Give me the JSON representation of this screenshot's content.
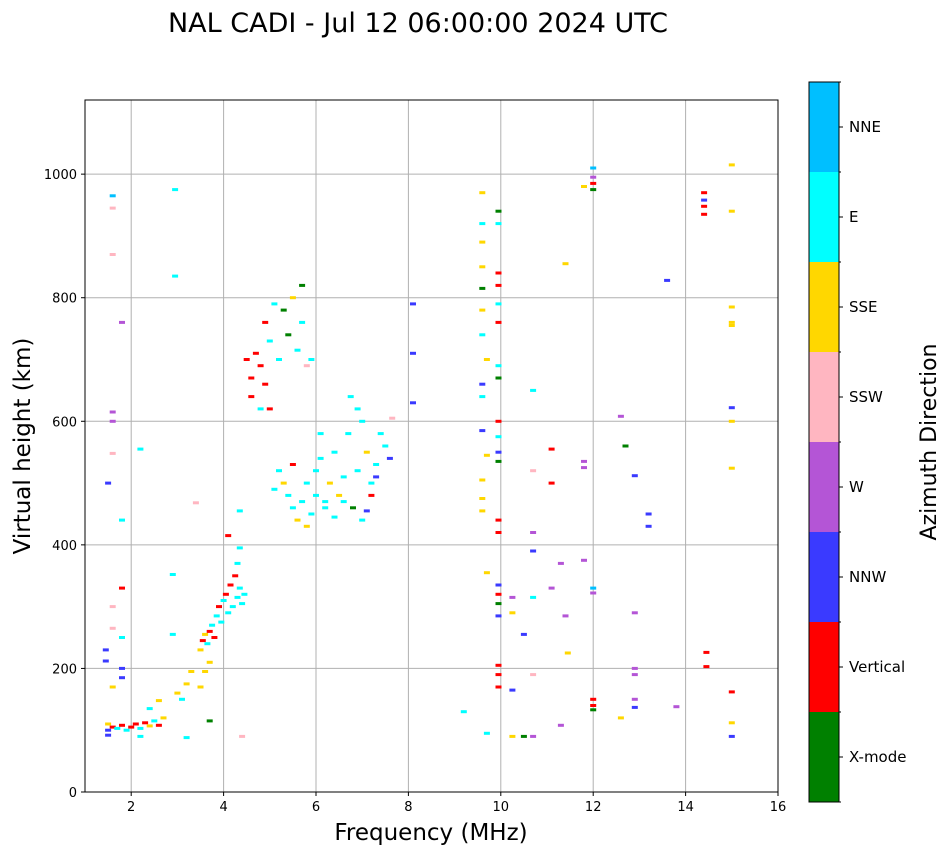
{
  "chart_data": {
    "type": "scatter",
    "title": "NAL CADI - Jul 12 06:00:00 2024 UTC",
    "xlabel": "Frequency (MHz)",
    "ylabel": "Virtual height (km)",
    "xlim": [
      1,
      16
    ],
    "ylim": [
      0,
      1120
    ],
    "xticks": [
      2,
      4,
      6,
      8,
      10,
      12,
      14,
      16
    ],
    "yticks": [
      0,
      200,
      400,
      600,
      800,
      1000
    ],
    "grid": true,
    "colorbar": {
      "label": "Azimuth Direction",
      "categories": [
        {
          "name": "X-mode",
          "color": "#008000"
        },
        {
          "name": "Vertical",
          "color": "#ff0000"
        },
        {
          "name": "NNW",
          "color": "#3a3aff"
        },
        {
          "name": "W",
          "color": "#b455d6"
        },
        {
          "name": "SSW",
          "color": "#ffb6c1"
        },
        {
          "name": "SSE",
          "color": "#ffd700"
        },
        {
          "name": "E",
          "color": "#00ffff"
        },
        {
          "name": "NNE",
          "color": "#00bfff"
        }
      ]
    },
    "points": [
      [
        1.45,
        230,
        "NNW"
      ],
      [
        1.45,
        212,
        "NNW"
      ],
      [
        1.5,
        500,
        "NNW"
      ],
      [
        1.6,
        965,
        "NNE"
      ],
      [
        1.6,
        945,
        "SSW"
      ],
      [
        1.6,
        870,
        "SSW"
      ],
      [
        1.6,
        615,
        "W"
      ],
      [
        1.6,
        600,
        "W"
      ],
      [
        1.6,
        548,
        "SSW"
      ],
      [
        1.6,
        300,
        "SSW"
      ],
      [
        1.6,
        265,
        "SSW"
      ],
      [
        1.6,
        170,
        "SSE"
      ],
      [
        1.8,
        760,
        "W"
      ],
      [
        1.8,
        440,
        "E"
      ],
      [
        1.8,
        330,
        "Vertical"
      ],
      [
        1.8,
        250,
        "E"
      ],
      [
        1.8,
        200,
        "NNW"
      ],
      [
        1.8,
        185,
        "NNW"
      ],
      [
        2.2,
        555,
        "E"
      ],
      [
        2.95,
        975,
        "E"
      ],
      [
        2.95,
        835,
        "E"
      ],
      [
        2.9,
        352,
        "E"
      ],
      [
        2.9,
        255,
        "E"
      ],
      [
        3.4,
        468,
        "SSW"
      ],
      [
        1.5,
        110,
        "SSE"
      ],
      [
        1.5,
        100,
        "NNW"
      ],
      [
        1.5,
        92,
        "NNW"
      ],
      [
        1.6,
        105,
        "Vertical"
      ],
      [
        1.7,
        103,
        "E"
      ],
      [
        1.8,
        108,
        "Vertical"
      ],
      [
        1.9,
        100,
        "E"
      ],
      [
        2.0,
        105,
        "Vertical"
      ],
      [
        2.1,
        110,
        "Vertical"
      ],
      [
        2.2,
        103,
        "E"
      ],
      [
        2.3,
        112,
        "Vertical"
      ],
      [
        2.4,
        107,
        "SSE"
      ],
      [
        2.5,
        115,
        "E"
      ],
      [
        2.6,
        108,
        "Vertical"
      ],
      [
        2.7,
        120,
        "SSE"
      ],
      [
        2.2,
        90,
        "E"
      ],
      [
        2.4,
        135,
        "E"
      ],
      [
        2.6,
        148,
        "SSE"
      ],
      [
        3.0,
        160,
        "SSE"
      ],
      [
        3.1,
        150,
        "E"
      ],
      [
        3.2,
        175,
        "SSE"
      ],
      [
        3.3,
        195,
        "SSE"
      ],
      [
        3.5,
        170,
        "SSE"
      ],
      [
        3.2,
        88,
        "E"
      ],
      [
        3.7,
        115,
        "X-mode"
      ],
      [
        4.4,
        90,
        "SSW"
      ],
      [
        3.5,
        230,
        "SSE"
      ],
      [
        3.55,
        245,
        "Vertical"
      ],
      [
        3.6,
        255,
        "SSE"
      ],
      [
        3.65,
        240,
        "E"
      ],
      [
        3.7,
        260,
        "Vertical"
      ],
      [
        3.75,
        270,
        "E"
      ],
      [
        3.8,
        250,
        "Vertical"
      ],
      [
        3.85,
        285,
        "E"
      ],
      [
        3.9,
        300,
        "Vertical"
      ],
      [
        3.95,
        275,
        "E"
      ],
      [
        4.0,
        310,
        "E"
      ],
      [
        4.05,
        320,
        "Vertical"
      ],
      [
        4.1,
        290,
        "E"
      ],
      [
        4.15,
        335,
        "Vertical"
      ],
      [
        4.2,
        300,
        "E"
      ],
      [
        4.25,
        350,
        "Vertical"
      ],
      [
        4.3,
        315,
        "E"
      ],
      [
        4.35,
        330,
        "E"
      ],
      [
        4.4,
        305,
        "E"
      ],
      [
        4.45,
        320,
        "E"
      ],
      [
        4.3,
        370,
        "E"
      ],
      [
        4.35,
        395,
        "E"
      ],
      [
        4.1,
        415,
        "Vertical"
      ],
      [
        4.35,
        455,
        "E"
      ],
      [
        3.7,
        210,
        "SSE"
      ],
      [
        3.6,
        195,
        "SSE"
      ],
      [
        4.6,
        670,
        "Vertical"
      ],
      [
        4.6,
        640,
        "Vertical"
      ],
      [
        4.7,
        710,
        "Vertical"
      ],
      [
        4.8,
        690,
        "Vertical"
      ],
      [
        4.5,
        700,
        "Vertical"
      ],
      [
        4.9,
        760,
        "Vertical"
      ],
      [
        5.0,
        730,
        "E"
      ],
      [
        5.1,
        790,
        "E"
      ],
      [
        5.2,
        700,
        "E"
      ],
      [
        5.3,
        780,
        "X-mode"
      ],
      [
        5.4,
        740,
        "X-mode"
      ],
      [
        5.5,
        800,
        "SSE"
      ],
      [
        5.6,
        715,
        "E"
      ],
      [
        5.7,
        760,
        "E"
      ],
      [
        5.8,
        690,
        "SSW"
      ],
      [
        4.9,
        660,
        "Vertical"
      ],
      [
        4.8,
        620,
        "E"
      ],
      [
        5.9,
        700,
        "E"
      ],
      [
        5.7,
        820,
        "X-mode"
      ],
      [
        5.0,
        620,
        "Vertical"
      ],
      [
        5.2,
        520,
        "E"
      ],
      [
        5.3,
        500,
        "SSE"
      ],
      [
        5.4,
        480,
        "E"
      ],
      [
        5.5,
        460,
        "E"
      ],
      [
        5.6,
        440,
        "SSE"
      ],
      [
        5.7,
        470,
        "E"
      ],
      [
        5.8,
        500,
        "E"
      ],
      [
        5.9,
        450,
        "E"
      ],
      [
        6.0,
        520,
        "E"
      ],
      [
        6.1,
        540,
        "E"
      ],
      [
        6.2,
        470,
        "E"
      ],
      [
        6.3,
        500,
        "SSE"
      ],
      [
        6.4,
        550,
        "E"
      ],
      [
        6.5,
        480,
        "SSE"
      ],
      [
        6.6,
        510,
        "E"
      ],
      [
        6.7,
        580,
        "E"
      ],
      [
        6.8,
        460,
        "X-mode"
      ],
      [
        6.9,
        520,
        "E"
      ],
      [
        7.0,
        600,
        "E"
      ],
      [
        7.1,
        550,
        "SSE"
      ],
      [
        7.2,
        500,
        "E"
      ],
      [
        7.3,
        530,
        "E"
      ],
      [
        7.4,
        580,
        "E"
      ],
      [
        7.5,
        560,
        "E"
      ],
      [
        6.0,
        480,
        "E"
      ],
      [
        6.2,
        460,
        "E"
      ],
      [
        6.4,
        445,
        "E"
      ],
      [
        6.6,
        470,
        "E"
      ],
      [
        5.5,
        530,
        "Vertical"
      ],
      [
        6.1,
        580,
        "E"
      ],
      [
        6.9,
        620,
        "E"
      ],
      [
        7.0,
        440,
        "E"
      ],
      [
        7.3,
        510,
        "NNW"
      ],
      [
        7.2,
        480,
        "Vertical"
      ],
      [
        7.6,
        540,
        "NNW"
      ],
      [
        5.1,
        490,
        "E"
      ],
      [
        6.75,
        640,
        "E"
      ],
      [
        5.8,
        430,
        "SSE"
      ],
      [
        7.1,
        455,
        "NNW"
      ],
      [
        7.65,
        605,
        "SSW"
      ],
      [
        8.1,
        790,
        "NNW"
      ],
      [
        8.1,
        710,
        "NNW"
      ],
      [
        8.1,
        630,
        "NNW"
      ],
      [
        9.2,
        130,
        "E"
      ],
      [
        9.6,
        970,
        "SSE"
      ],
      [
        9.6,
        920,
        "E"
      ],
      [
        9.6,
        890,
        "SSE"
      ],
      [
        9.6,
        850,
        "SSE"
      ],
      [
        9.6,
        815,
        "X-mode"
      ],
      [
        9.6,
        780,
        "SSE"
      ],
      [
        9.6,
        740,
        "E"
      ],
      [
        9.7,
        700,
        "SSE"
      ],
      [
        9.6,
        660,
        "NNW"
      ],
      [
        9.6,
        640,
        "E"
      ],
      [
        9.6,
        585,
        "NNW"
      ],
      [
        9.7,
        545,
        "SSE"
      ],
      [
        9.6,
        505,
        "SSE"
      ],
      [
        9.6,
        475,
        "SSE"
      ],
      [
        9.6,
        455,
        "SSE"
      ],
      [
        9.7,
        355,
        "SSE"
      ],
      [
        9.7,
        95,
        "E"
      ],
      [
        9.95,
        940,
        "X-mode"
      ],
      [
        9.95,
        920,
        "E"
      ],
      [
        9.95,
        840,
        "Vertical"
      ],
      [
        9.95,
        820,
        "Vertical"
      ],
      [
        9.95,
        790,
        "E"
      ],
      [
        9.95,
        760,
        "Vertical"
      ],
      [
        9.95,
        690,
        "E"
      ],
      [
        9.95,
        670,
        "X-mode"
      ],
      [
        9.95,
        600,
        "Vertical"
      ],
      [
        9.95,
        575,
        "E"
      ],
      [
        9.95,
        550,
        "NNW"
      ],
      [
        9.95,
        535,
        "X-mode"
      ],
      [
        9.95,
        440,
        "Vertical"
      ],
      [
        9.95,
        420,
        "Vertical"
      ],
      [
        9.95,
        335,
        "NNW"
      ],
      [
        9.95,
        320,
        "Vertical"
      ],
      [
        9.95,
        305,
        "X-mode"
      ],
      [
        9.95,
        285,
        "NNW"
      ],
      [
        9.95,
        205,
        "Vertical"
      ],
      [
        9.95,
        190,
        "Vertical"
      ],
      [
        9.95,
        170,
        "Vertical"
      ],
      [
        10.25,
        315,
        "W"
      ],
      [
        10.25,
        290,
        "SSE"
      ],
      [
        10.25,
        165,
        "NNW"
      ],
      [
        10.25,
        90,
        "SSE"
      ],
      [
        10.5,
        255,
        "NNW"
      ],
      [
        10.5,
        90,
        "X-mode"
      ],
      [
        10.7,
        650,
        "E"
      ],
      [
        10.7,
        520,
        "SSW"
      ],
      [
        10.7,
        420,
        "W"
      ],
      [
        10.7,
        390,
        "NNW"
      ],
      [
        10.7,
        315,
        "E"
      ],
      [
        10.7,
        190,
        "SSW"
      ],
      [
        10.7,
        90,
        "W"
      ],
      [
        11.1,
        555,
        "Vertical"
      ],
      [
        11.1,
        500,
        "Vertical"
      ],
      [
        11.1,
        330,
        "W"
      ],
      [
        11.3,
        370,
        "W"
      ],
      [
        11.4,
        285,
        "W"
      ],
      [
        11.3,
        108,
        "W"
      ],
      [
        11.4,
        855,
        "SSE"
      ],
      [
        11.45,
        225,
        "SSE"
      ],
      [
        11.8,
        980,
        "SSE"
      ],
      [
        11.8,
        535,
        "W"
      ],
      [
        11.8,
        525,
        "W"
      ],
      [
        11.8,
        375,
        "W"
      ],
      [
        12.0,
        1010,
        "NNE"
      ],
      [
        12.0,
        995,
        "W"
      ],
      [
        12.0,
        985,
        "Vertical"
      ],
      [
        12.0,
        975,
        "X-mode"
      ],
      [
        12.0,
        330,
        "NNE"
      ],
      [
        12.0,
        322,
        "W"
      ],
      [
        12.0,
        150,
        "Vertical"
      ],
      [
        12.0,
        140,
        "Vertical"
      ],
      [
        12.0,
        133,
        "X-mode"
      ],
      [
        12.6,
        608,
        "W"
      ],
      [
        12.6,
        120,
        "SSE"
      ],
      [
        12.7,
        560,
        "X-mode"
      ],
      [
        12.9,
        512,
        "NNW"
      ],
      [
        12.9,
        290,
        "W"
      ],
      [
        12.9,
        200,
        "W"
      ],
      [
        12.9,
        190,
        "W"
      ],
      [
        12.9,
        150,
        "W"
      ],
      [
        12.9,
        137,
        "NNW"
      ],
      [
        13.2,
        450,
        "NNW"
      ],
      [
        13.2,
        430,
        "NNW"
      ],
      [
        13.6,
        828,
        "NNW"
      ],
      [
        13.8,
        138,
        "W"
      ],
      [
        14.4,
        970,
        "Vertical"
      ],
      [
        14.4,
        958,
        "NNW"
      ],
      [
        14.4,
        948,
        "Vertical"
      ],
      [
        14.4,
        935,
        "Vertical"
      ],
      [
        14.45,
        226,
        "Vertical"
      ],
      [
        14.45,
        203,
        "Vertical"
      ],
      [
        15.0,
        1015,
        "SSE"
      ],
      [
        15.0,
        940,
        "SSE"
      ],
      [
        15.0,
        785,
        "SSE"
      ],
      [
        15.0,
        760,
        "SSE"
      ],
      [
        15.0,
        755,
        "SSE"
      ],
      [
        15.0,
        622,
        "NNW"
      ],
      [
        15.0,
        600,
        "SSE"
      ],
      [
        15.0,
        524,
        "SSE"
      ],
      [
        15.0,
        162,
        "Vertical"
      ],
      [
        15.0,
        112,
        "SSE"
      ],
      [
        15.0,
        90,
        "NNW"
      ]
    ]
  }
}
